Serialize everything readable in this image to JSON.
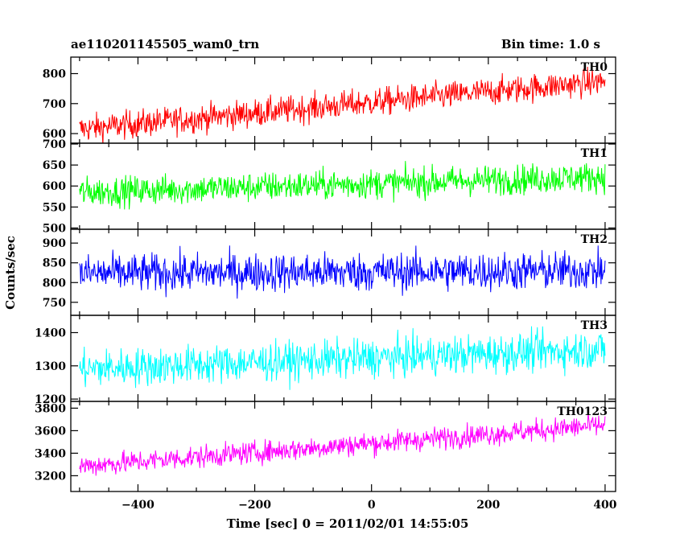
{
  "chart_data": {
    "type": "line",
    "title_left": "ae110201145505_wam0_trn",
    "title_right": "Bin time: 1.0 s",
    "xlabel": "Time [sec] 0 = 2011/02/01 14:55:05",
    "ylabel": "Counts/sec",
    "xlim": [
      -515,
      418
    ],
    "x_ticks": [
      -400,
      -200,
      0,
      200,
      400
    ],
    "x_step": 1,
    "panels": [
      {
        "name": "TH0",
        "color": "#ff0000",
        "ylim": [
          568,
          855
        ],
        "y_ticks": [
          600,
          700,
          800
        ],
        "trend": {
          "x": [
            -500,
            400
          ],
          "y": [
            615,
            775
          ]
        },
        "noise": 42
      },
      {
        "name": "TH1",
        "color": "#00ff00",
        "ylim": [
          497,
          702
        ],
        "y_ticks": [
          500,
          550,
          600,
          650,
          700
        ],
        "trend": {
          "x": [
            -500,
            400
          ],
          "y": [
            585,
            622
          ]
        },
        "noise": 32
      },
      {
        "name": "TH2",
        "color": "#0000ff",
        "ylim": [
          717,
          935
        ],
        "y_ticks": [
          750,
          800,
          850,
          900
        ],
        "trend": {
          "x": [
            -500,
            400
          ],
          "y": [
            823,
            830
          ]
        },
        "noise": 44
      },
      {
        "name": "TH3",
        "color": "#00ffff",
        "ylim": [
          1193,
          1452
        ],
        "y_ticks": [
          1200,
          1300,
          1400
        ],
        "trend": {
          "x": [
            -500,
            400
          ],
          "y": [
            1290,
            1350
          ]
        },
        "noise": 52
      },
      {
        "name": "TH0123",
        "color": "#ff00ff",
        "ylim": [
          3060,
          3860
        ],
        "y_ticks": [
          3200,
          3400,
          3600,
          3800
        ],
        "trend": {
          "x": [
            -500,
            400
          ],
          "y": [
            3285,
            3650
          ]
        },
        "noise": 90
      }
    ]
  }
}
